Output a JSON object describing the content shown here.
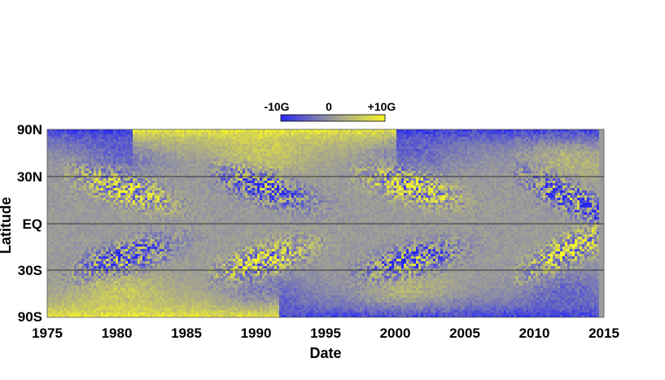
{
  "chart_data": {
    "type": "heatmap",
    "description_type": "magnetic butterfly diagram",
    "xlabel": "Date",
    "ylabel": "Latitude",
    "xlim": [
      1975,
      2015
    ],
    "data_xlim": [
      1975.0,
      2014.6
    ],
    "x_ticks": [
      1975,
      1980,
      1985,
      1990,
      1995,
      2000,
      2005,
      2010,
      2015
    ],
    "y_ticks": [
      "90N",
      "30N",
      "EQ",
      "30S",
      "90S"
    ],
    "y_gridlines": [
      "30N",
      "EQ",
      "30S"
    ],
    "colorbar": {
      "min_label": "-10G",
      "mid_label": "0",
      "max_label": "+10G",
      "min_color": "#2a2af0",
      "mid_color": "#9b9b9b",
      "max_color": "#f5f52a"
    },
    "cycles": [
      {
        "start": 1976.0,
        "end": 1987.0,
        "north_sign": 1,
        "peak": 1980.5
      },
      {
        "start": 1986.5,
        "end": 1997.5,
        "north_sign": -1,
        "peak": 1990.5
      },
      {
        "start": 1996.5,
        "end": 2009.5,
        "north_sign": 1,
        "peak": 2001.0
      },
      {
        "start": 2008.5,
        "end": 2015.0,
        "north_sign": -1,
        "peak": 2012.5
      }
    ],
    "polar_fields": [
      {
        "start": 1975.0,
        "end": 1981.0,
        "north": -1,
        "south": 1
      },
      {
        "start": 1981.0,
        "end": 1991.5,
        "north": 1,
        "south": 1
      },
      {
        "start": 1991.5,
        "end": 2000.0,
        "north": 1,
        "south": -1
      },
      {
        "start": 2000.0,
        "end": 2014.6,
        "north": -1,
        "south": -1
      }
    ]
  }
}
